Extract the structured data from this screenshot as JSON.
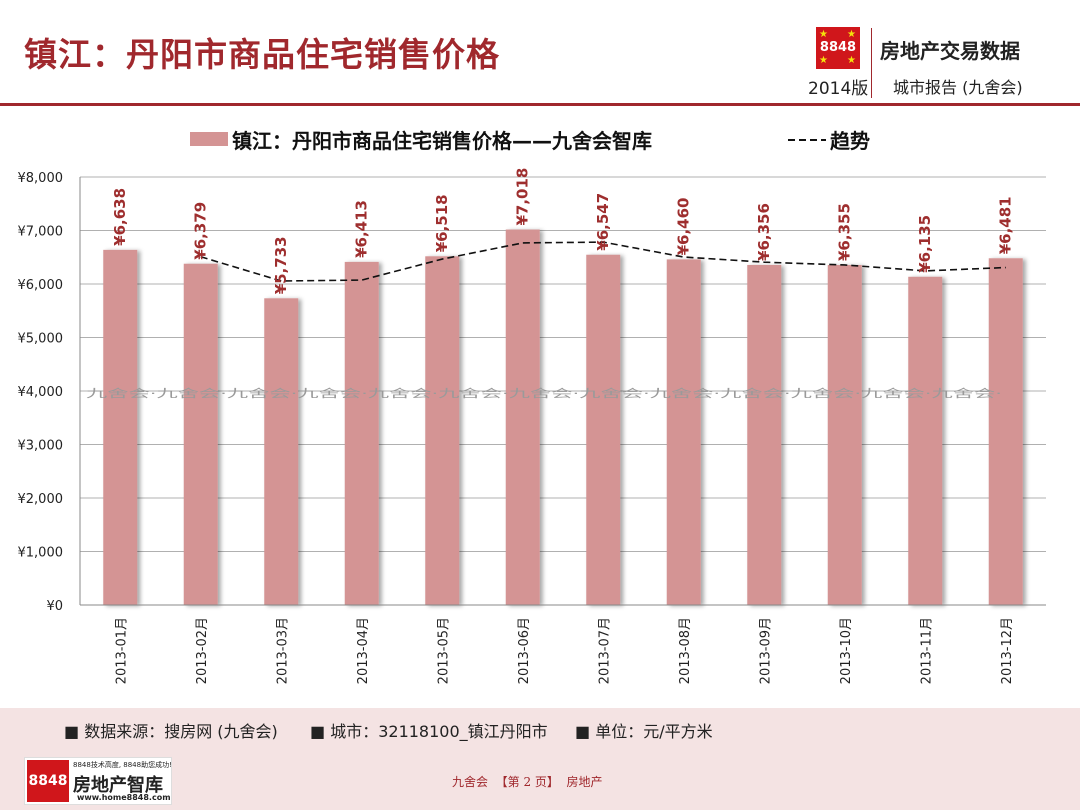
{
  "header": {
    "title": "镇江：丹阳市商品住宅销售价格",
    "brand_logo_text": "8848",
    "brand_title": "房地产交易数据",
    "brand_year": "2014版",
    "brand_subtitle": "城市报告 (九舍会)"
  },
  "chart_data": {
    "type": "bar",
    "categories": [
      "2013-01月",
      "2013-02月",
      "2013-03月",
      "2013-04月",
      "2013-05月",
      "2013-06月",
      "2013-07月",
      "2013-08月",
      "2013-09月",
      "2013-10月",
      "2013-11月",
      "2013-12月"
    ],
    "series": [
      {
        "name": "镇江：丹阳市商品住宅销售价格——九舍会智库",
        "type": "bar",
        "values": [
          6638,
          6379,
          5733,
          6413,
          6518,
          7018,
          6547,
          6460,
          6356,
          6355,
          6135,
          6481
        ]
      },
      {
        "name": "趋势",
        "type": "line",
        "style": "dashed",
        "values": [
          null,
          6509,
          6056,
          6073,
          6466,
          6768,
          6783,
          6504,
          6408,
          6356,
          6245,
          6308
        ]
      }
    ],
    "data_labels": [
      "¥6,638",
      "¥6,379",
      "¥5,733",
      "¥6,413",
      "¥6,518",
      "¥7,018",
      "¥6,547",
      "¥6,460",
      "¥6,356",
      "¥6,355",
      "¥6,135",
      "¥6,481"
    ],
    "ylim": [
      0,
      8000
    ],
    "yticks": [
      0,
      1000,
      2000,
      3000,
      4000,
      5000,
      6000,
      7000,
      8000
    ],
    "ytick_labels": [
      "¥0",
      "¥1,000",
      "¥2,000",
      "¥3,000",
      "¥4,000",
      "¥5,000",
      "¥6,000",
      "¥7,000",
      "¥8,000"
    ],
    "grid": true,
    "legend_position": "top",
    "watermark": "九舍会·",
    "colors": {
      "bar": "#d49494",
      "trend": "#111111",
      "label": "#9e2e2e",
      "grid": "#b0b0b0"
    }
  },
  "footer": {
    "note_source": "■ 数据来源：搜房网 (九舍会)",
    "note_city": "■ 城市：32118100_镇江丹阳市",
    "note_unit": "■ 单位：元/平方米",
    "logo_badge": "8848",
    "logo_tagline": "8848技术高度, 8848助您成功!",
    "logo_name": "房地产智库",
    "logo_url": "www.home8848.com",
    "page_text": "九舍会  【第 2 页】  房地产"
  }
}
